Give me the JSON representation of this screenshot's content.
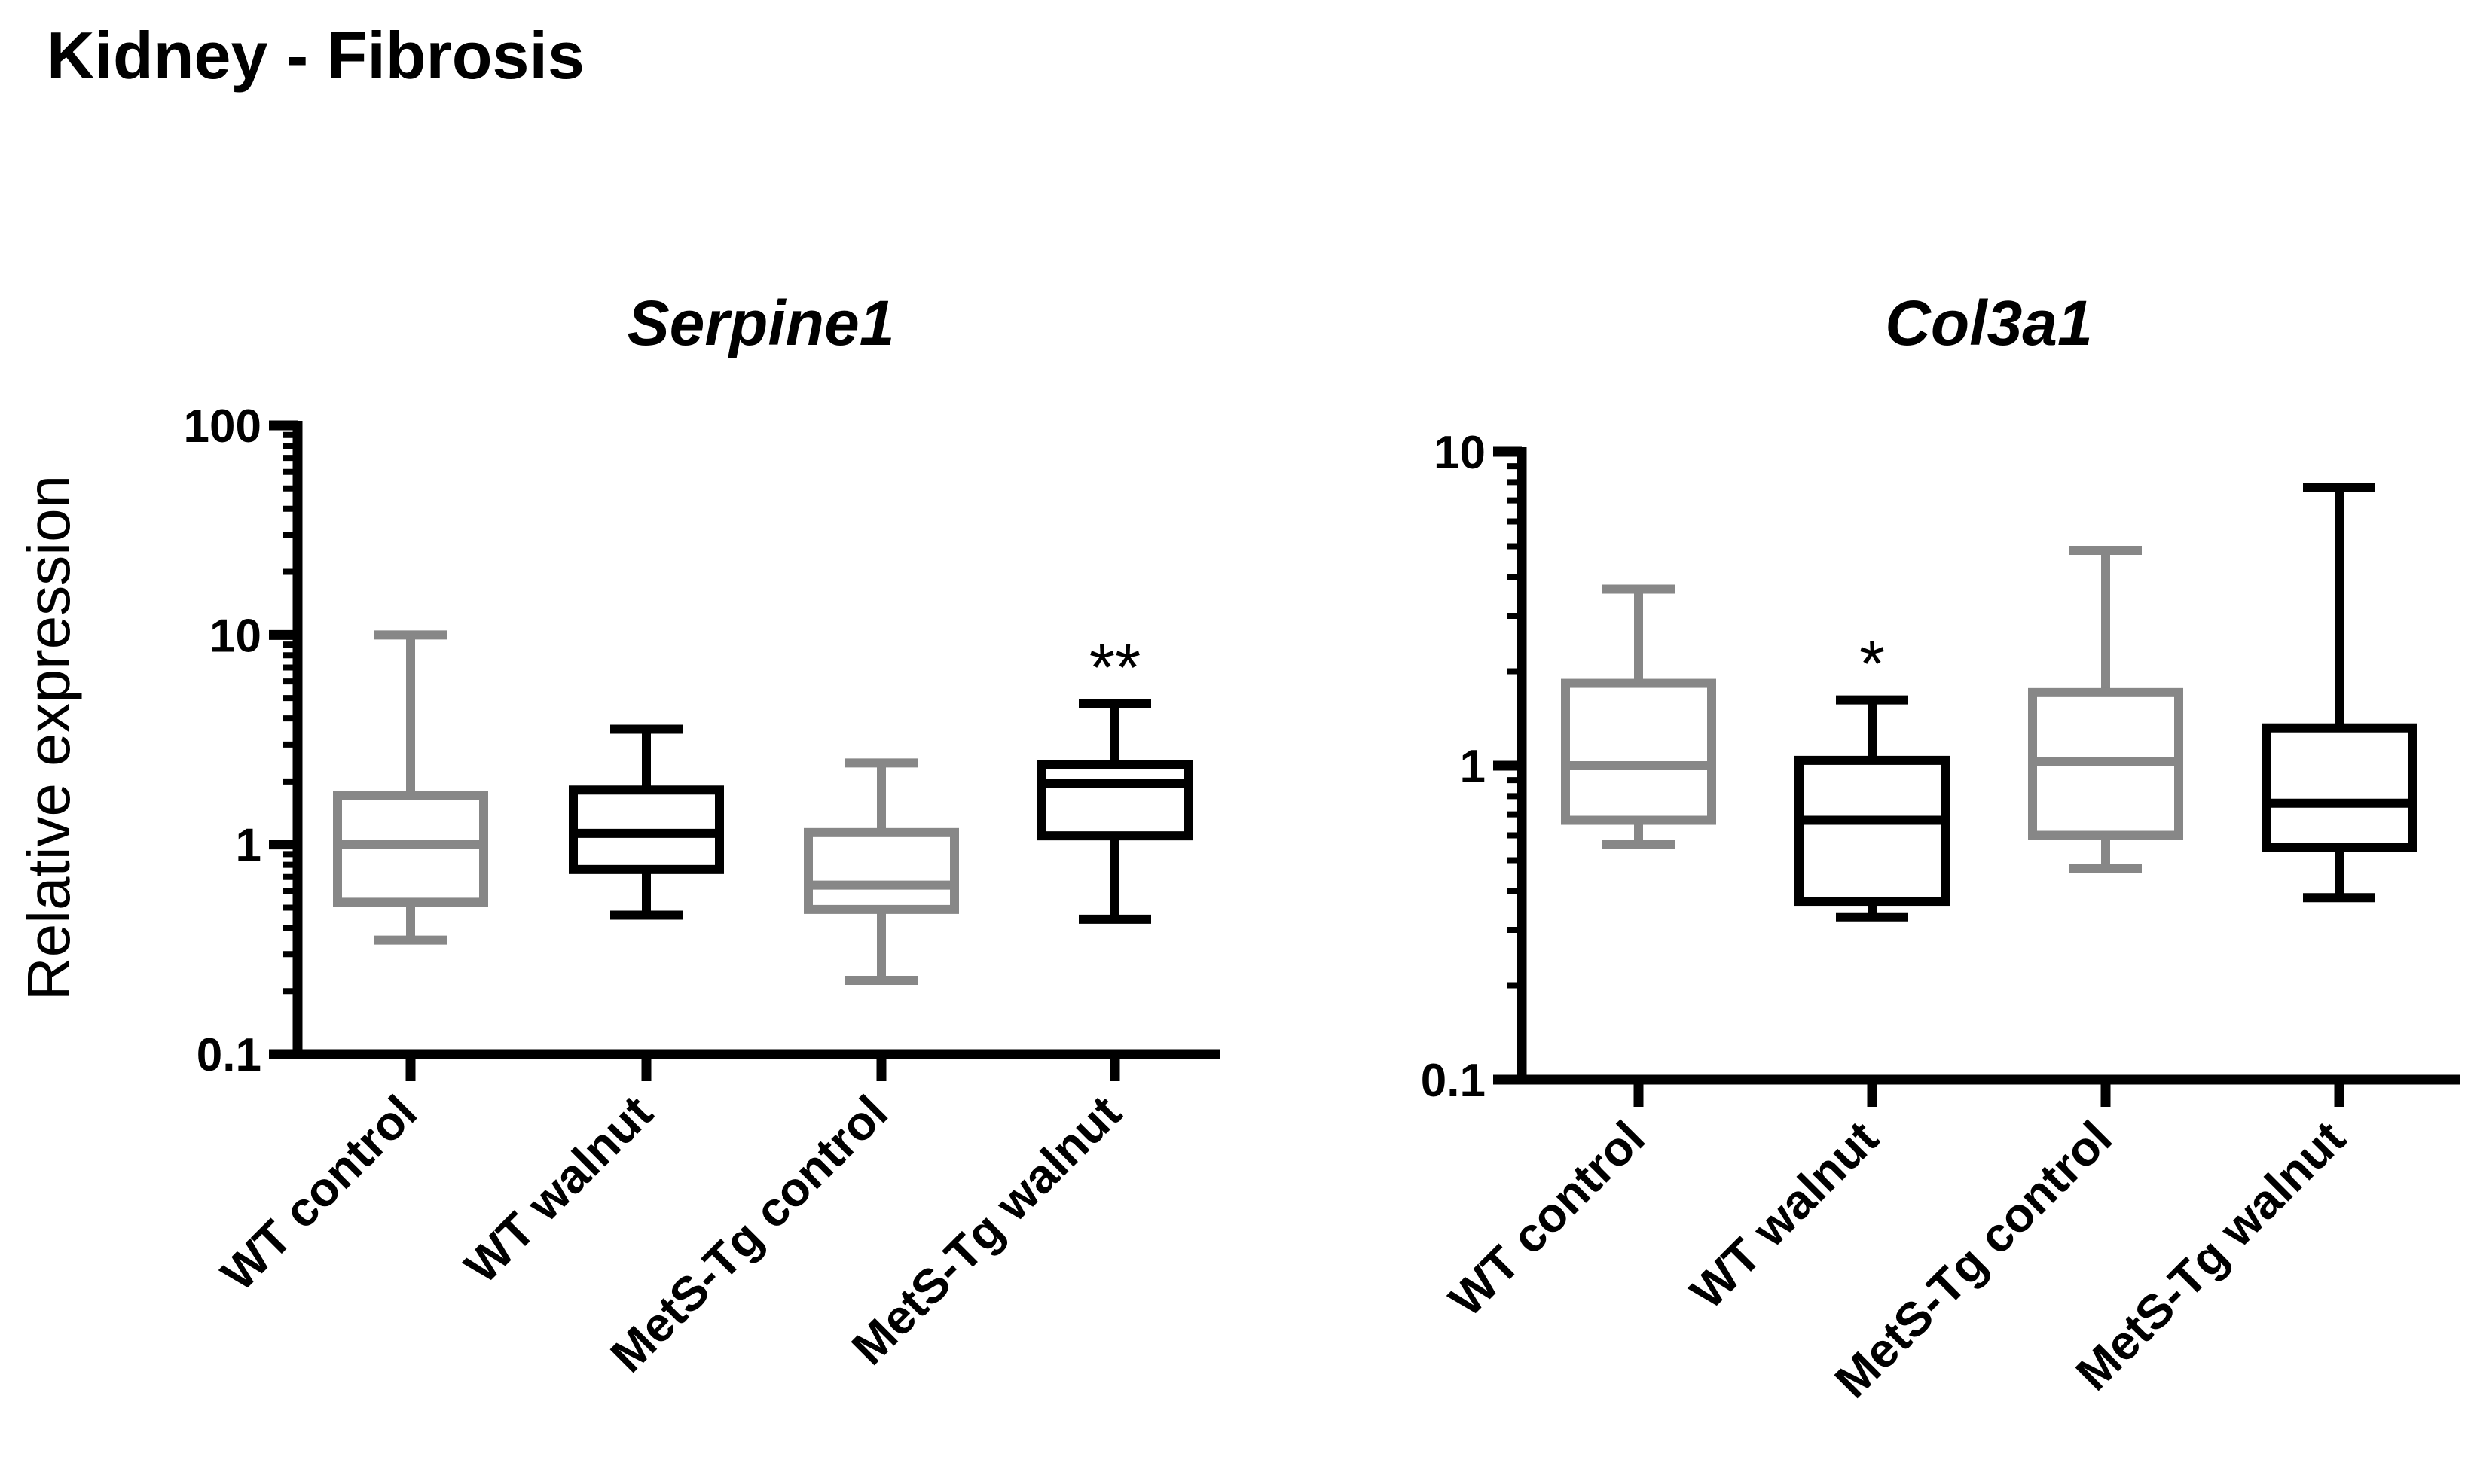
{
  "figure_title": "Kidney - Fibrosis",
  "ylabel": "Relative expression",
  "colors": {
    "gray": "#878787",
    "black": "#000000"
  },
  "chart_data": [
    {
      "type": "box",
      "title": "Serpine1",
      "ylabel": "Relative expression",
      "yscale": "log",
      "ylim": [
        0.1,
        100
      ],
      "yticks": [
        0.1,
        1,
        10,
        100
      ],
      "ytick_labels": [
        "0.1",
        "1",
        "10",
        "100"
      ],
      "categories": [
        "WT control",
        "WT walnut",
        "MetS-Tg control",
        "MetS-Tg walnut"
      ],
      "boxes": [
        {
          "category": "WT control",
          "color": "gray",
          "min": 0.35,
          "q1": 0.53,
          "median": 1.0,
          "q3": 1.72,
          "max": 10.0,
          "annotation": ""
        },
        {
          "category": "WT walnut",
          "color": "black",
          "min": 0.46,
          "q1": 0.76,
          "median": 1.13,
          "q3": 1.82,
          "max": 3.55,
          "annotation": ""
        },
        {
          "category": "MetS-Tg control",
          "color": "gray",
          "min": 0.225,
          "q1": 0.49,
          "median": 0.64,
          "q3": 1.14,
          "max": 2.45,
          "annotation": ""
        },
        {
          "category": "MetS-Tg walnut",
          "color": "black",
          "min": 0.44,
          "q1": 1.1,
          "median": 1.95,
          "q3": 2.4,
          "max": 4.7,
          "annotation": "**"
        }
      ]
    },
    {
      "type": "box",
      "title": "Col3a1",
      "ylabel": "",
      "yscale": "log",
      "ylim": [
        0.1,
        10
      ],
      "yticks": [
        0.1,
        1,
        10
      ],
      "ytick_labels": [
        "0.1",
        "1",
        "10"
      ],
      "categories": [
        "WT control",
        "WT walnut",
        "MetS-Tg control",
        "MetS-Tg walnut"
      ],
      "boxes": [
        {
          "category": "WT control",
          "color": "gray",
          "min": 0.56,
          "q1": 0.67,
          "median": 1.0,
          "q3": 1.83,
          "max": 3.65,
          "annotation": ""
        },
        {
          "category": "WT walnut",
          "color": "black",
          "min": 0.33,
          "q1": 0.37,
          "median": 0.67,
          "q3": 1.04,
          "max": 1.62,
          "annotation": "*"
        },
        {
          "category": "MetS-Tg control",
          "color": "gray",
          "min": 0.47,
          "q1": 0.6,
          "median": 1.03,
          "q3": 1.71,
          "max": 4.85,
          "annotation": ""
        },
        {
          "category": "MetS-Tg walnut",
          "color": "black",
          "min": 0.38,
          "q1": 0.55,
          "median": 0.76,
          "q3": 1.32,
          "max": 7.7,
          "annotation": ""
        }
      ]
    }
  ]
}
